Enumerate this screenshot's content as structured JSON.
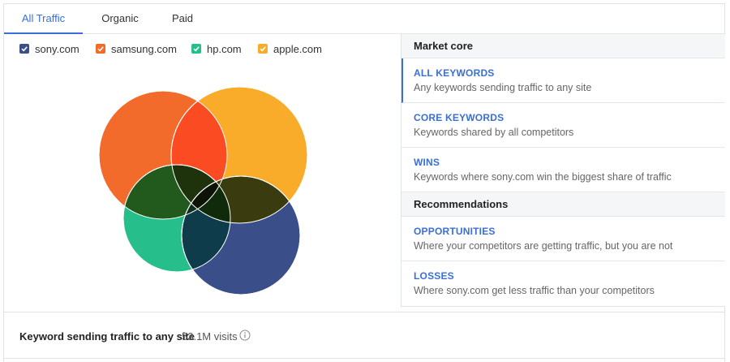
{
  "tabs": [
    {
      "label": "All Traffic",
      "active": true
    },
    {
      "label": "Organic",
      "active": false
    },
    {
      "label": "Paid",
      "active": false
    }
  ],
  "legend": [
    {
      "label": "sony.com",
      "color": "#3a4f8a"
    },
    {
      "label": "samsung.com",
      "color": "#f26b2a"
    },
    {
      "label": "hp.com",
      "color": "#26bf8b"
    },
    {
      "label": "apple.com",
      "color": "#f9ab2a"
    }
  ],
  "panel": {
    "market_core_heading": "Market core",
    "recommendations_heading": "Recommendations",
    "items": [
      {
        "title": "ALL KEYWORDS",
        "desc": "Any keywords sending traffic to any site",
        "selected": true
      },
      {
        "title": "CORE KEYWORDS",
        "desc": "Keywords shared by all competitors",
        "selected": false
      },
      {
        "title": "WINS",
        "desc": "Keywords where sony.com win the biggest share of traffic",
        "selected": false
      },
      {
        "title": "OPPORTUNITIES",
        "desc": "Where your competitors are getting traffic, but you are not",
        "selected": false
      },
      {
        "title": "LOSSES",
        "desc": "Where sony.com get less traffic than your competitors",
        "selected": false
      }
    ]
  },
  "summary": {
    "label": "Keyword sending traffic to any site",
    "value": "53.1M visits",
    "info_icon": "info-icon"
  }
}
